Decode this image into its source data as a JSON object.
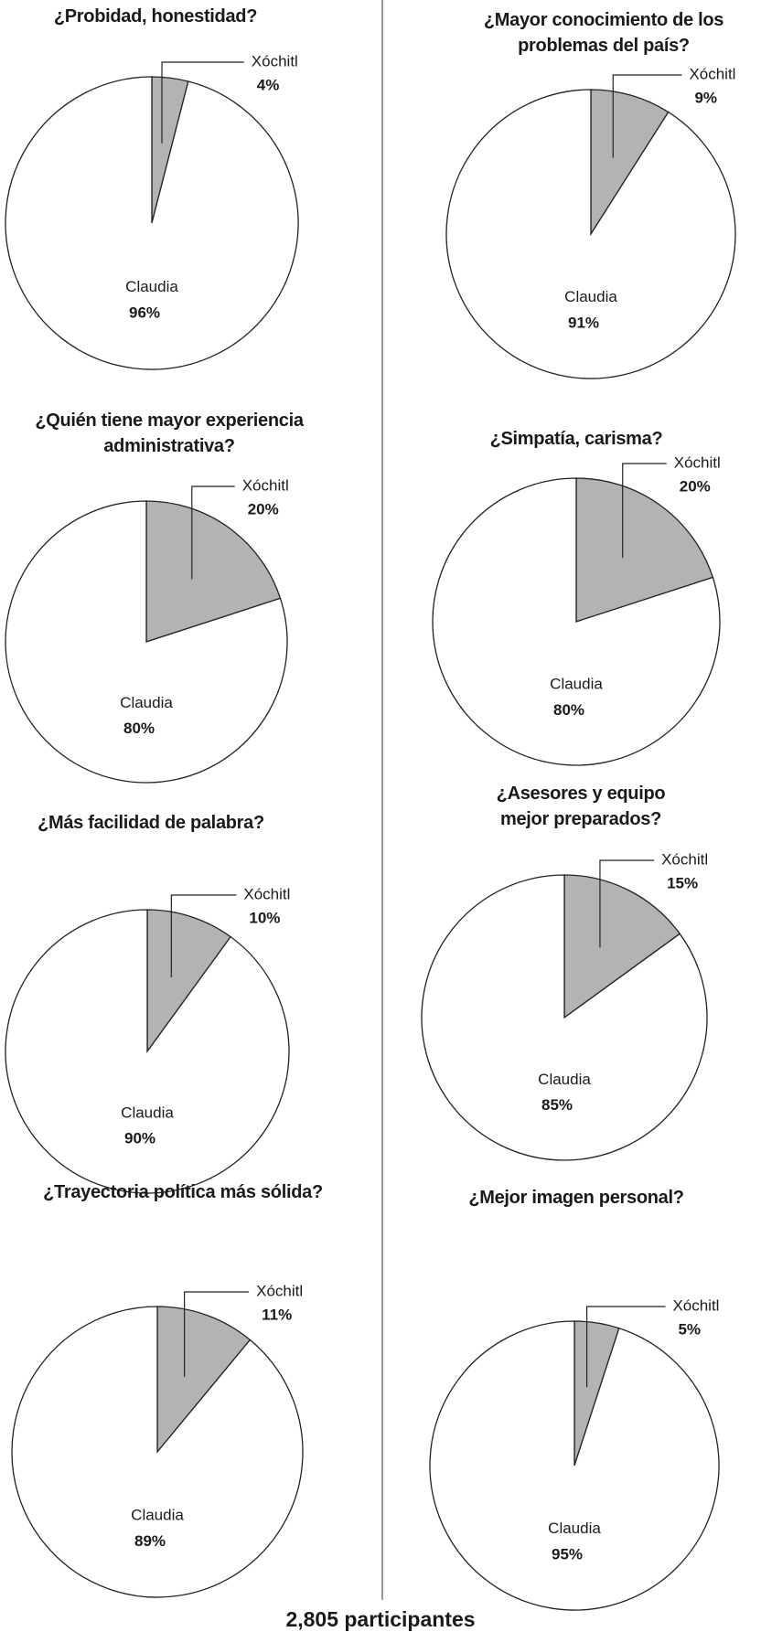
{
  "chart_data": [
    {
      "type": "pie",
      "title": "¿Probidad, honestidad?",
      "categories": [
        "Xóchitl",
        "Claudia"
      ],
      "values": [
        4,
        96
      ],
      "value_labels": [
        "4%",
        "96%"
      ],
      "colors": [
        "#b3b3b3",
        "#ffffff"
      ]
    },
    {
      "type": "pie",
      "title": "¿Mayor conocimiento de los problemas del país?",
      "categories": [
        "Xóchitl",
        "Claudia"
      ],
      "values": [
        9,
        91
      ],
      "value_labels": [
        "9%",
        "91%"
      ],
      "colors": [
        "#b3b3b3",
        "#ffffff"
      ]
    },
    {
      "type": "pie",
      "title": "¿Quién tiene mayor experiencia administrativa?",
      "categories": [
        "Xóchitl",
        "Claudia"
      ],
      "values": [
        20,
        80
      ],
      "value_labels": [
        "20%",
        "80%"
      ],
      "colors": [
        "#b3b3b3",
        "#ffffff"
      ]
    },
    {
      "type": "pie",
      "title": "¿Simpatía, carisma?",
      "categories": [
        "Xóchitl",
        "Claudia"
      ],
      "values": [
        20,
        80
      ],
      "value_labels": [
        "20%",
        "80%"
      ],
      "colors": [
        "#b3b3b3",
        "#ffffff"
      ]
    },
    {
      "type": "pie",
      "title": "¿Más facilidad de palabra?",
      "categories": [
        "Xóchitl",
        "Claudia"
      ],
      "values": [
        10,
        90
      ],
      "value_labels": [
        "10%",
        "90%"
      ],
      "colors": [
        "#b3b3b3",
        "#ffffff"
      ]
    },
    {
      "type": "pie",
      "title": "¿Asesores y equipo mejor preparados?",
      "categories": [
        "Xóchitl",
        "Claudia"
      ],
      "values": [
        15,
        85
      ],
      "value_labels": [
        "15%",
        "85%"
      ],
      "colors": [
        "#b3b3b3",
        "#ffffff"
      ]
    },
    {
      "type": "pie",
      "title": "¿Trayectoria política más sólida?",
      "categories": [
        "Xóchitl",
        "Claudia"
      ],
      "values": [
        11,
        89
      ],
      "value_labels": [
        "11%",
        "89%"
      ],
      "colors": [
        "#b3b3b3",
        "#ffffff"
      ]
    },
    {
      "type": "pie",
      "title": "¿Mejor imagen personal?",
      "categories": [
        "Xóchitl",
        "Claudia"
      ],
      "values": [
        5,
        95
      ],
      "value_labels": [
        "5%",
        "95%"
      ],
      "colors": [
        "#b3b3b3",
        "#ffffff"
      ]
    }
  ],
  "footer": "2,805 participantes"
}
